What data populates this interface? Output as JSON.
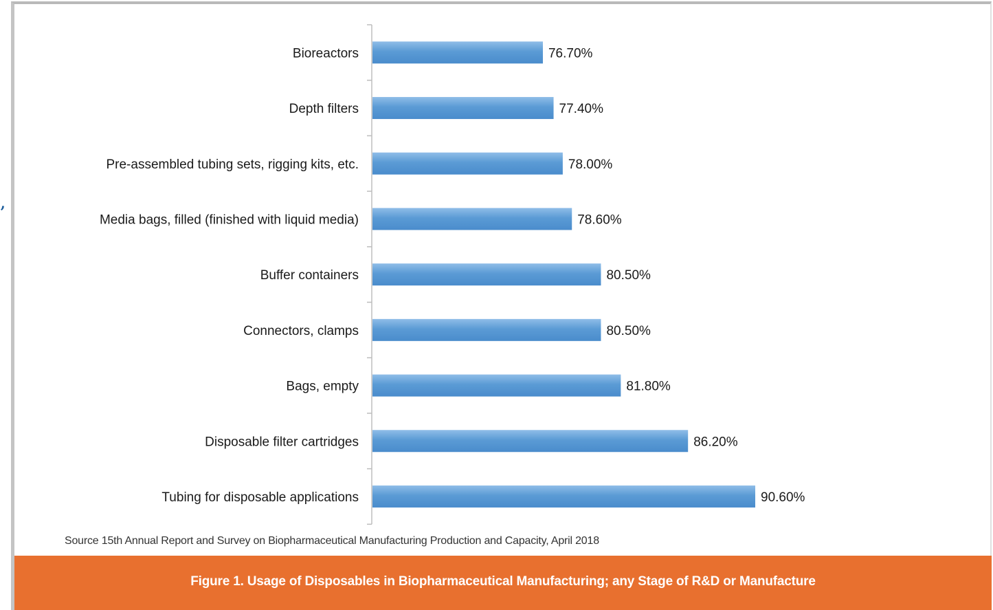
{
  "colors": {
    "bar_fill": "#5b9bd5",
    "bar_highlight": "#8fbde8",
    "axis": "#bdbdbd",
    "caption_band": "#e8702f",
    "caption_text": "#ffffff",
    "quote_mark": "#1e5e9c"
  },
  "stray_mark": "’",
  "chart_data": {
    "type": "bar",
    "orientation": "horizontal",
    "categories": [
      "Bioreactors",
      "Depth filters",
      "Pre-assembled tubing sets, rigging kits, etc.",
      "Media bags, filled (finished with liquid media)",
      "Buffer containers",
      "Connectors, clamps",
      "Bags, empty",
      "Disposable filter cartridges",
      "Tubing for disposable applications"
    ],
    "values": [
      76.7,
      77.4,
      78.0,
      78.6,
      80.5,
      80.5,
      81.8,
      86.2,
      90.6
    ],
    "value_labels": [
      "76.70%",
      "77.40%",
      "78.00%",
      "78.60%",
      "80.50%",
      "80.50%",
      "81.80%",
      "86.20%",
      "90.60%"
    ],
    "unit": "%",
    "xlim": [
      65.5,
      100
    ],
    "grid": false,
    "legend": "none",
    "title": "",
    "xlabel": "",
    "ylabel": ""
  },
  "source_note": "Source 15th Annual Report and Survey on Biopharmaceutical Manufacturing Production and Capacity, April 2018",
  "caption": "Figure 1. Usage of Disposables in Biopharmaceutical Manufacturing; any Stage of R&D or Manufacture"
}
